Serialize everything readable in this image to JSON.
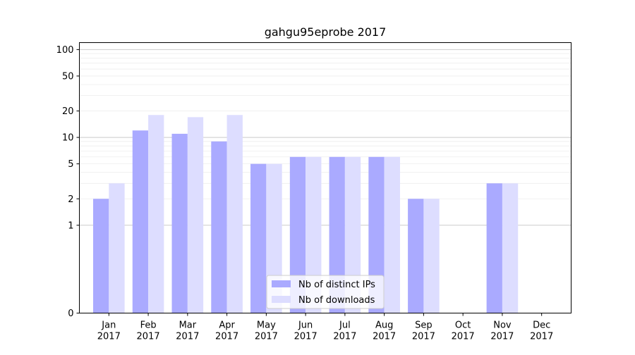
{
  "chart_data": {
    "type": "bar",
    "title": "gahgu95eprobe 2017",
    "xlabel": "",
    "ylabel": "",
    "y_scale": "symlog",
    "ylim": [
      0,
      120
    ],
    "y_ticks": [
      0,
      1,
      2,
      5,
      10,
      20,
      50,
      100
    ],
    "categories": [
      [
        "Jan",
        "2017"
      ],
      [
        "Feb",
        "2017"
      ],
      [
        "Mar",
        "2017"
      ],
      [
        "Apr",
        "2017"
      ],
      [
        "May",
        "2017"
      ],
      [
        "Jun",
        "2017"
      ],
      [
        "Jul",
        "2017"
      ],
      [
        "Aug",
        "2017"
      ],
      [
        "Sep",
        "2017"
      ],
      [
        "Oct",
        "2017"
      ],
      [
        "Nov",
        "2017"
      ],
      [
        "Dec",
        "2017"
      ]
    ],
    "series": [
      {
        "name": "Nb of distinct IPs",
        "color": "#aaaaff",
        "values": [
          2,
          12,
          11,
          9,
          5,
          6,
          6,
          6,
          2,
          0,
          3,
          0
        ]
      },
      {
        "name": "Nb of downloads",
        "color": "#ddddff",
        "values": [
          3,
          18,
          17,
          18,
          5,
          6,
          6,
          6,
          2,
          0,
          3,
          0
        ]
      }
    ],
    "grid": true,
    "legend_position": "bottom-center"
  }
}
